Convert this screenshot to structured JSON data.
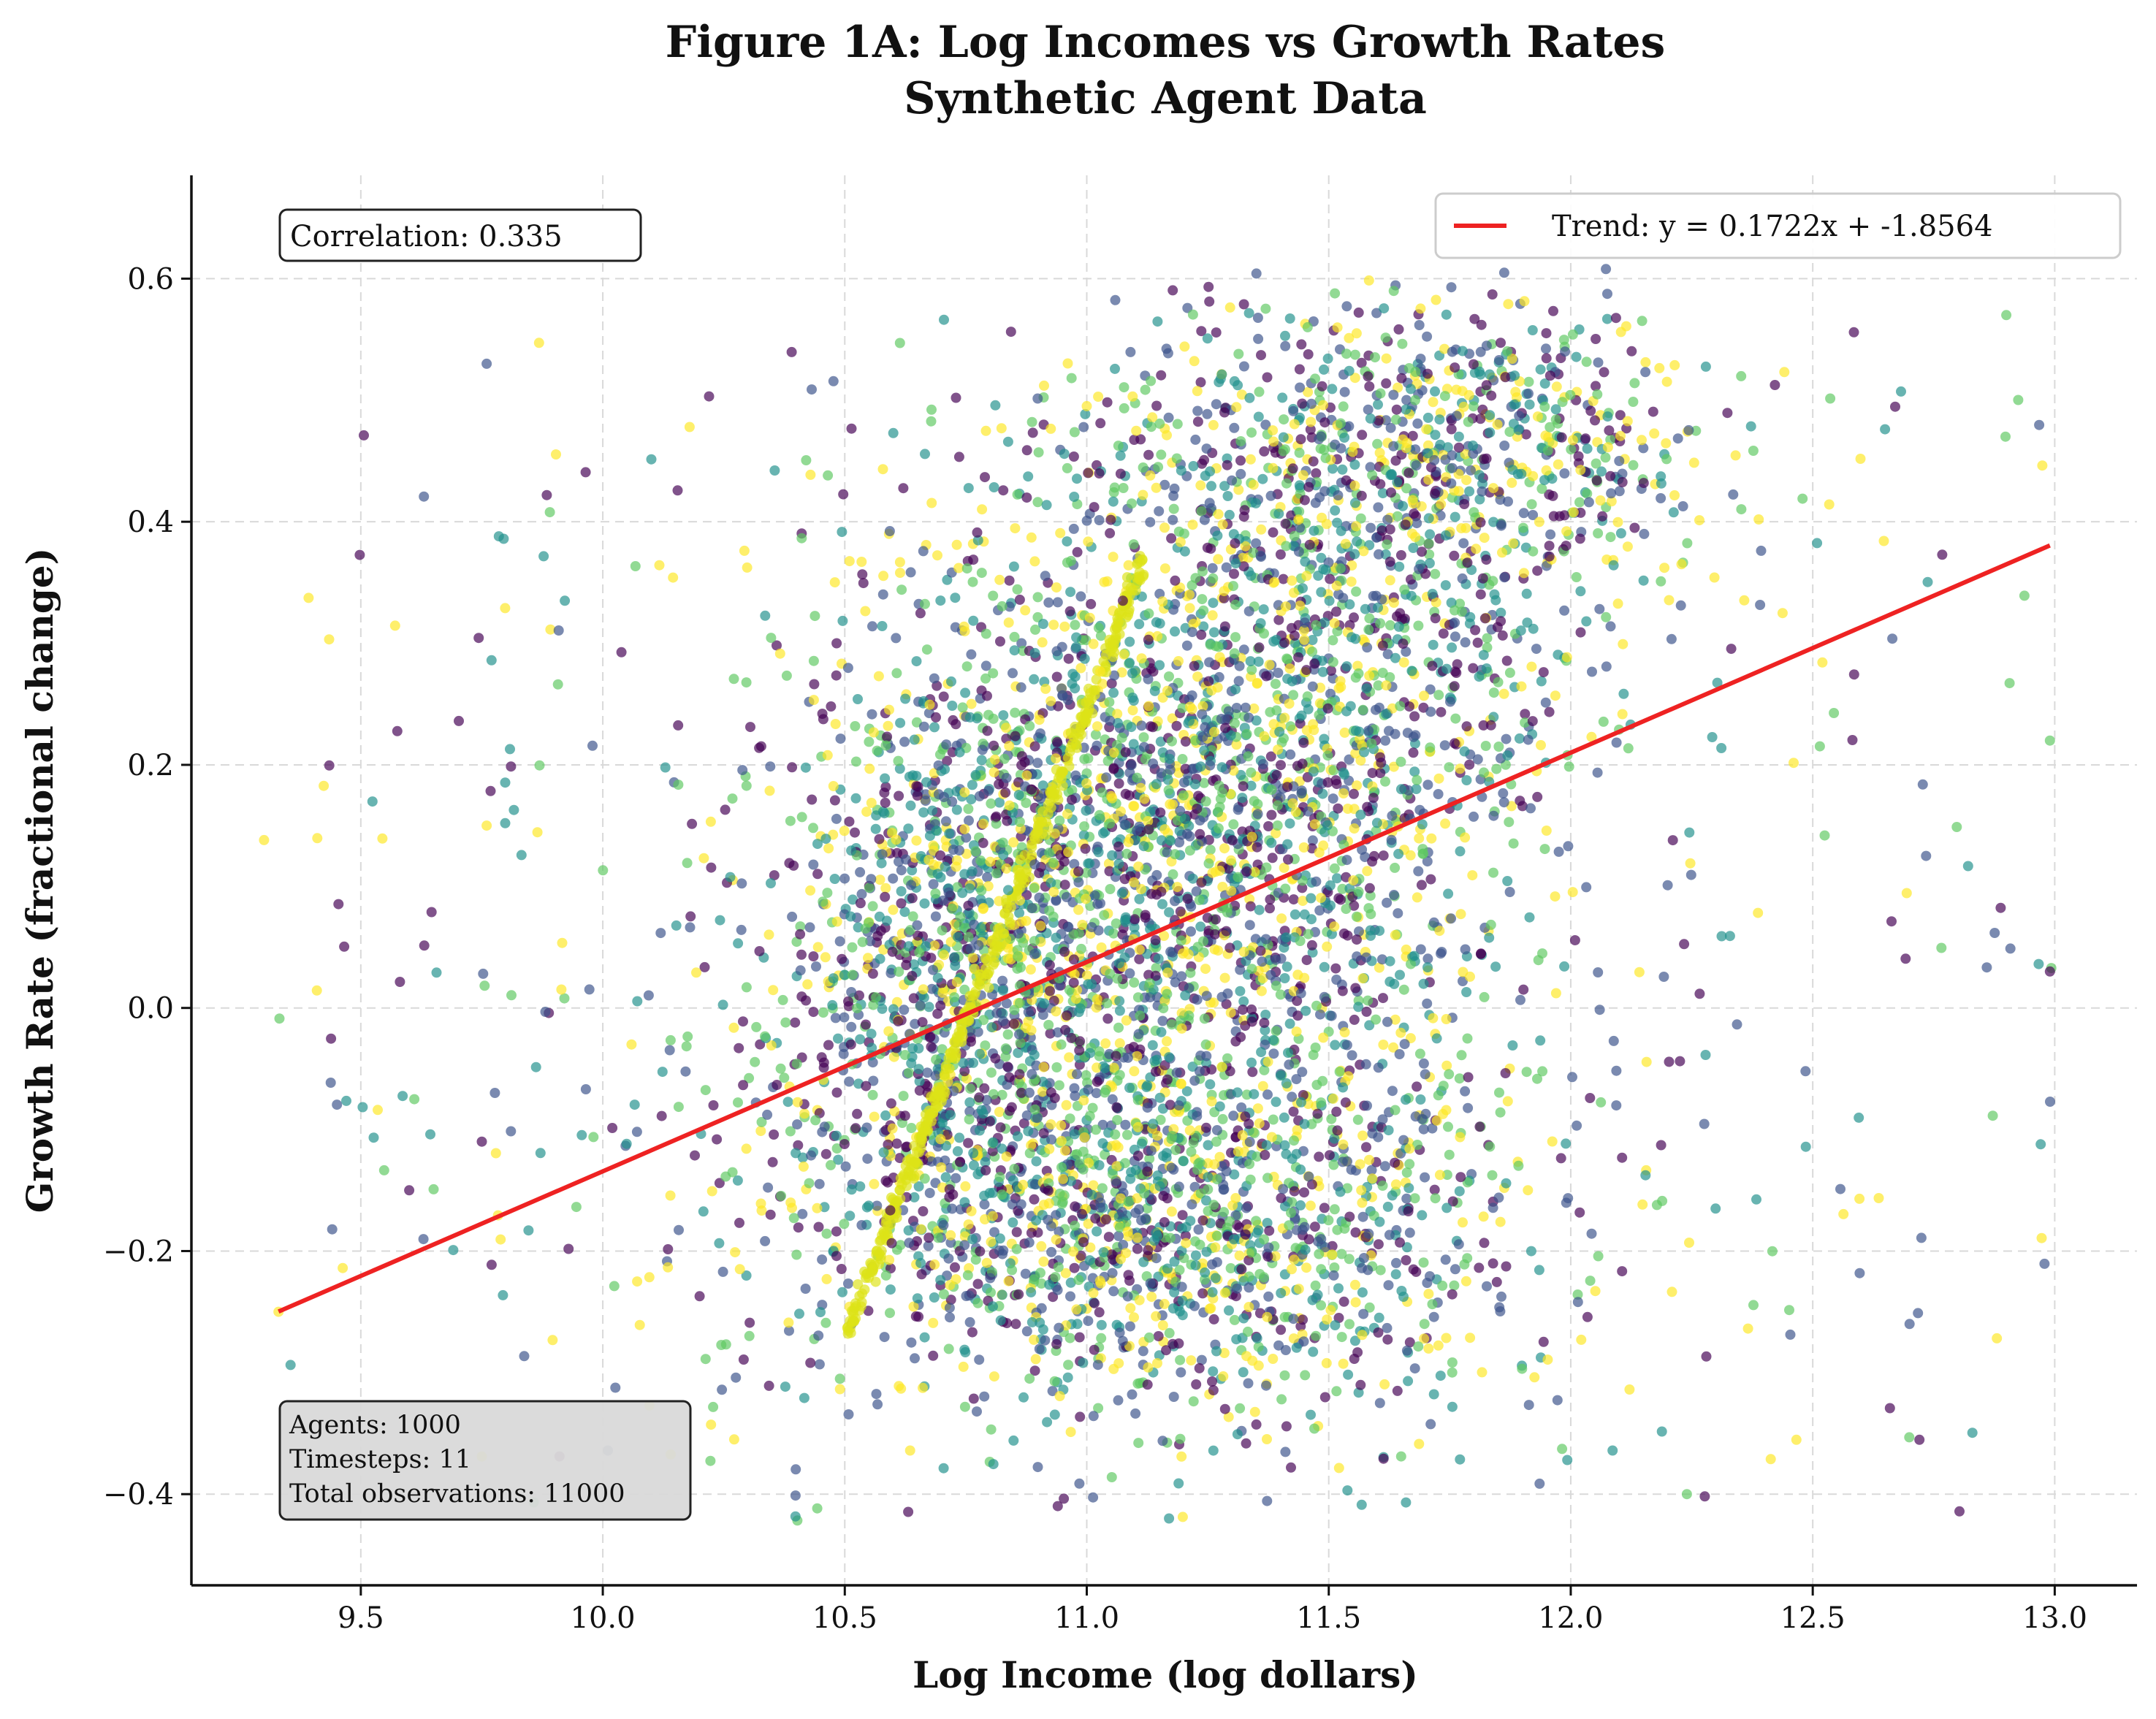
{
  "chart_data": {
    "type": "scatter",
    "title": "Figure 1A: Log Incomes vs Growth Rates",
    "subtitle": "Synthetic Agent Data",
    "xlabel": "Log Income (log dollars)",
    "ylabel": "Growth Rate (fractional change)",
    "xlim": [
      9.15,
      13.17
    ],
    "ylim": [
      -0.475,
      0.685
    ],
    "x_ticks": [
      9.5,
      10.0,
      10.5,
      11.0,
      11.5,
      12.0,
      12.5,
      13.0
    ],
    "x_tick_labels": [
      "9.5",
      "10.0",
      "10.5",
      "11.0",
      "11.5",
      "12.0",
      "12.5",
      "13.0"
    ],
    "y_ticks": [
      -0.4,
      -0.2,
      0.0,
      0.2,
      0.4,
      0.6
    ],
    "y_tick_labels": [
      "−0.4",
      "−0.2",
      "0.0",
      "0.2",
      "0.4",
      "0.6"
    ],
    "grid": true,
    "colormap": "viridis",
    "colors": {
      "trend": "#ee2222",
      "viridis": [
        "#440154",
        "#3b528b",
        "#21918c",
        "#5ec962",
        "#fde725"
      ]
    },
    "trend": {
      "label": "Trend: y = 0.1722x + -1.8564",
      "slope": 0.1722,
      "intercept": -1.8564,
      "x_range": [
        9.33,
        12.99
      ]
    },
    "legend": {
      "placement": "top-right"
    },
    "annotations": {
      "correlation": "Correlation: 0.335",
      "stats": [
        "Agents: 1000",
        "Timesteps: 11",
        "Total observations: 11000"
      ]
    },
    "clusters": [
      {
        "cx": 10.95,
        "cy": 0.16,
        "sx": 0.25,
        "sy": 0.12,
        "share": 0.13
      },
      {
        "cx": 11.35,
        "cy": 0.12,
        "sx": 0.28,
        "sy": 0.12,
        "share": 0.16
      },
      {
        "cx": 11.55,
        "cy": 0.28,
        "sx": 0.25,
        "sy": 0.09,
        "share": 0.09
      },
      {
        "cx": 11.55,
        "cy": 0.44,
        "sx": 0.35,
        "sy": 0.07,
        "share": 0.1
      },
      {
        "cx": 11.25,
        "cy": -0.17,
        "sx": 0.32,
        "sy": 0.07,
        "share": 0.14
      },
      {
        "cx": 10.8,
        "cy": -0.08,
        "sx": 0.25,
        "sy": 0.1,
        "share": 0.1
      },
      {
        "cx": 10.7,
        "cy": 0.08,
        "sx": 0.15,
        "sy": 0.08,
        "share": 0.07
      },
      {
        "cx": 11.85,
        "cy": 0.48,
        "sx": 0.22,
        "sy": 0.05,
        "share": 0.05
      },
      {
        "cx": 11.1,
        "cy": -0.22,
        "sx": 0.45,
        "sy": 0.09,
        "share": 0.06
      },
      {
        "cx": 11.0,
        "cy": 0.0,
        "sx": 0.7,
        "sy": 0.25,
        "share": 0.1
      }
    ],
    "diagonal_band": {
      "x_start": 10.5,
      "x_end": 11.12,
      "y_start": -0.27,
      "y_end": 0.37
    },
    "notable_points": [
      {
        "x": 9.76,
        "y": 0.53
      },
      {
        "x": 9.33,
        "y": -0.25
      },
      {
        "x": 9.76,
        "y": 0.15
      },
      {
        "x": 9.6,
        "y": -0.15
      },
      {
        "x": 12.99,
        "y": 0.03
      },
      {
        "x": 12.99,
        "y": 0.22
      },
      {
        "x": 12.9,
        "y": 0.57
      },
      {
        "x": 12.24,
        "y": -0.4
      },
      {
        "x": 11.17,
        "y": -0.42
      },
      {
        "x": 12.7,
        "y": -0.26
      },
      {
        "x": 9.75,
        "y": -0.11
      }
    ],
    "n_points": 11000
  }
}
